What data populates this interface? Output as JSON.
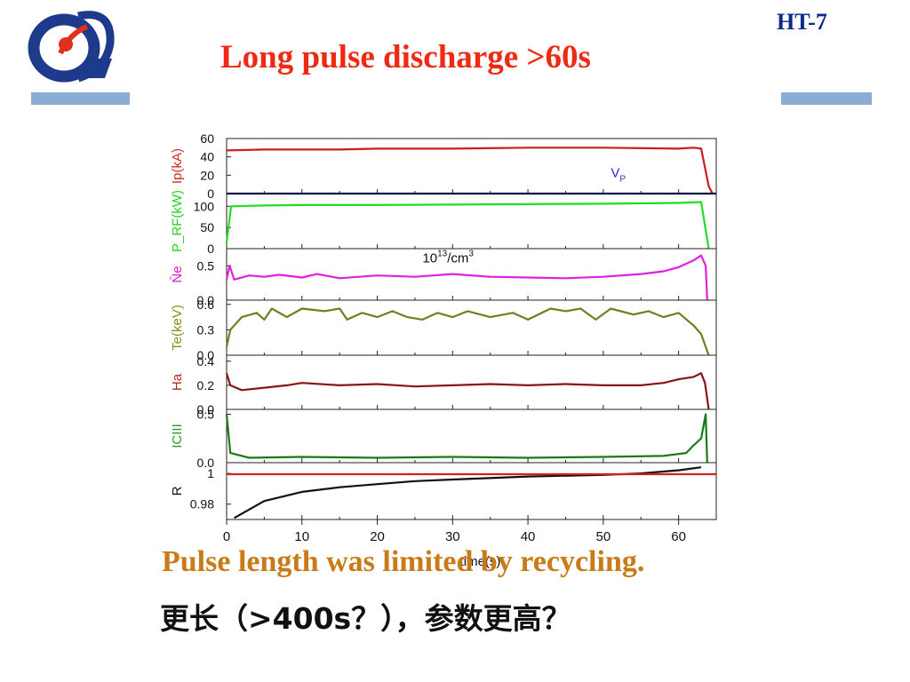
{
  "slide": {
    "tag": "HT-7",
    "title": "Long pulse discharge >60s",
    "caption_en": "Pulse length was limited by recycling.",
    "caption_zh": "更长（>400s？），参数更高？",
    "logo_icon": "institute-logo-icon",
    "accent_bar_color": "#8aadd6",
    "title_color": "#ee2a14",
    "caption_color": "#c87b16"
  },
  "chart_data": {
    "type": "line",
    "title": "",
    "xlabel": "time(s)",
    "x_ticks": [
      0,
      10,
      20,
      30,
      40,
      50,
      60
    ],
    "xlim": [
      0,
      65
    ],
    "panels": [
      {
        "id": "ip",
        "ylabel": "Ip(kA)",
        "ylabel_color": "#d22a1e",
        "yticks": [
          0,
          20,
          40,
          60
        ],
        "ylim": [
          0,
          60
        ],
        "series": [
          {
            "color": "#c81e1e",
            "points": [
              [
                0,
                47
              ],
              [
                5,
                48
              ],
              [
                10,
                48
              ],
              [
                15,
                48
              ],
              [
                20,
                49
              ],
              [
                30,
                49
              ],
              [
                40,
                50
              ],
              [
                50,
                50
              ],
              [
                60,
                49
              ],
              [
                62,
                50
              ],
              [
                63,
                49
              ],
              [
                64,
                8
              ],
              [
                64.5,
                0
              ]
            ]
          },
          {
            "name": "Vp",
            "color": "#0a0a6a",
            "points": [
              [
                0,
                0
              ],
              [
                65,
                0
              ]
            ]
          }
        ],
        "annotation": {
          "text": "V",
          "sub": "P",
          "color": "#2830c8",
          "x": 51,
          "y": 18
        }
      },
      {
        "id": "prf",
        "ylabel": "P_RF(kW)",
        "ylabel_color": "#2ad21e",
        "yticks": [
          0,
          50,
          100
        ],
        "ylim": [
          0,
          130
        ],
        "series": [
          {
            "color": "#22dd22",
            "points": [
              [
                0,
                15
              ],
              [
                0.6,
                100
              ],
              [
                5,
                102
              ],
              [
                10,
                103
              ],
              [
                20,
                103
              ],
              [
                30,
                104
              ],
              [
                40,
                105
              ],
              [
                50,
                106
              ],
              [
                60,
                108
              ],
              [
                63,
                110
              ],
              [
                64,
                0
              ]
            ]
          }
        ]
      },
      {
        "id": "ne",
        "ylabel": "N̄e",
        "ylabel_color": "#d21ed2",
        "yticks": [
          0.0,
          0.5
        ],
        "ylim": [
          0,
          0.75
        ],
        "series": [
          {
            "color": "#e020e0",
            "points": [
              [
                0,
                0.3
              ],
              [
                0.4,
                0.5
              ],
              [
                1,
                0.3
              ],
              [
                3,
                0.36
              ],
              [
                5,
                0.34
              ],
              [
                7,
                0.37
              ],
              [
                10,
                0.33
              ],
              [
                12,
                0.38
              ],
              [
                15,
                0.32
              ],
              [
                20,
                0.36
              ],
              [
                25,
                0.34
              ],
              [
                30,
                0.38
              ],
              [
                35,
                0.34
              ],
              [
                40,
                0.33
              ],
              [
                45,
                0.32
              ],
              [
                50,
                0.34
              ],
              [
                55,
                0.38
              ],
              [
                58,
                0.42
              ],
              [
                60,
                0.48
              ],
              [
                62,
                0.58
              ],
              [
                63,
                0.65
              ],
              [
                63.6,
                0.5
              ],
              [
                63.8,
                0
              ]
            ]
          }
        ],
        "annotation": {
          "text": "10",
          "sup": "13",
          "suffix": "/cm",
          "sup2": "3",
          "x": 26,
          "y": 0.55
        }
      },
      {
        "id": "te",
        "ylabel": "Te(keV)",
        "ylabel_color": "#8a8a1e",
        "yticks": [
          0.0,
          0.3,
          0.6
        ],
        "ylim": [
          0,
          0.65
        ],
        "series": [
          {
            "color": "#7a7a1e",
            "points": [
              [
                0,
                0.1
              ],
              [
                0.5,
                0.3
              ],
              [
                2,
                0.45
              ],
              [
                4,
                0.5
              ],
              [
                5,
                0.42
              ],
              [
                6,
                0.55
              ],
              [
                8,
                0.45
              ],
              [
                10,
                0.55
              ],
              [
                13,
                0.52
              ],
              [
                15,
                0.55
              ],
              [
                16,
                0.42
              ],
              [
                18,
                0.5
              ],
              [
                20,
                0.45
              ],
              [
                22,
                0.52
              ],
              [
                24,
                0.45
              ],
              [
                26,
                0.42
              ],
              [
                28,
                0.5
              ],
              [
                30,
                0.45
              ],
              [
                32,
                0.52
              ],
              [
                35,
                0.45
              ],
              [
                38,
                0.5
              ],
              [
                40,
                0.42
              ],
              [
                43,
                0.55
              ],
              [
                45,
                0.52
              ],
              [
                47,
                0.55
              ],
              [
                49,
                0.42
              ],
              [
                51,
                0.55
              ],
              [
                54,
                0.48
              ],
              [
                56,
                0.52
              ],
              [
                58,
                0.45
              ],
              [
                60,
                0.5
              ],
              [
                62,
                0.35
              ],
              [
                63,
                0.25
              ],
              [
                64,
                0
              ]
            ]
          }
        ]
      },
      {
        "id": "ha",
        "ylabel": "Ha",
        "ylabel_color": "#b4281e",
        "yticks": [
          0.0,
          0.2,
          0.4
        ],
        "ylim": [
          0,
          0.45
        ],
        "series": [
          {
            "color": "#8a1414",
            "points": [
              [
                0,
                0.3
              ],
              [
                0.5,
                0.2
              ],
              [
                2,
                0.16
              ],
              [
                5,
                0.18
              ],
              [
                8,
                0.2
              ],
              [
                10,
                0.22
              ],
              [
                15,
                0.2
              ],
              [
                20,
                0.21
              ],
              [
                25,
                0.19
              ],
              [
                30,
                0.2
              ],
              [
                35,
                0.21
              ],
              [
                40,
                0.2
              ],
              [
                45,
                0.21
              ],
              [
                50,
                0.2
              ],
              [
                55,
                0.2
              ],
              [
                58,
                0.22
              ],
              [
                60,
                0.25
              ],
              [
                62,
                0.27
              ],
              [
                63,
                0.3
              ],
              [
                63.5,
                0.22
              ],
              [
                64,
                0
              ]
            ]
          }
        ]
      },
      {
        "id": "ciii",
        "ylabel": "ICIII",
        "ylabel_color": "#2a9a2a",
        "yticks": [
          0.0,
          0.5
        ],
        "ylim": [
          0,
          0.55
        ],
        "series": [
          {
            "color": "#1a7a1a",
            "points": [
              [
                0,
                0.5
              ],
              [
                0.5,
                0.1
              ],
              [
                3,
                0.05
              ],
              [
                10,
                0.06
              ],
              [
                20,
                0.05
              ],
              [
                30,
                0.06
              ],
              [
                40,
                0.05
              ],
              [
                50,
                0.06
              ],
              [
                58,
                0.07
              ],
              [
                61,
                0.1
              ],
              [
                62,
                0.18
              ],
              [
                63,
                0.25
              ],
              [
                63.6,
                0.5
              ],
              [
                63.8,
                0
              ]
            ]
          }
        ]
      },
      {
        "id": "r",
        "ylabel": "R",
        "ylabel_color": "#111111",
        "yticks": [
          0.98,
          1.0
        ],
        "ylim": [
          0.97,
          1.007
        ],
        "series": [
          {
            "color": "#111111",
            "points": [
              [
                1,
                0.971
              ],
              [
                5,
                0.982
              ],
              [
                10,
                0.988
              ],
              [
                15,
                0.991
              ],
              [
                20,
                0.993
              ],
              [
                25,
                0.995
              ],
              [
                30,
                0.996
              ],
              [
                40,
                0.998
              ],
              [
                50,
                0.999
              ],
              [
                55,
                1.0
              ],
              [
                60,
                1.002
              ],
              [
                63,
                1.004
              ]
            ]
          },
          {
            "color": "#d02020",
            "points": [
              [
                0,
                0.9995
              ],
              [
                65,
                0.9995
              ]
            ]
          }
        ]
      }
    ]
  }
}
